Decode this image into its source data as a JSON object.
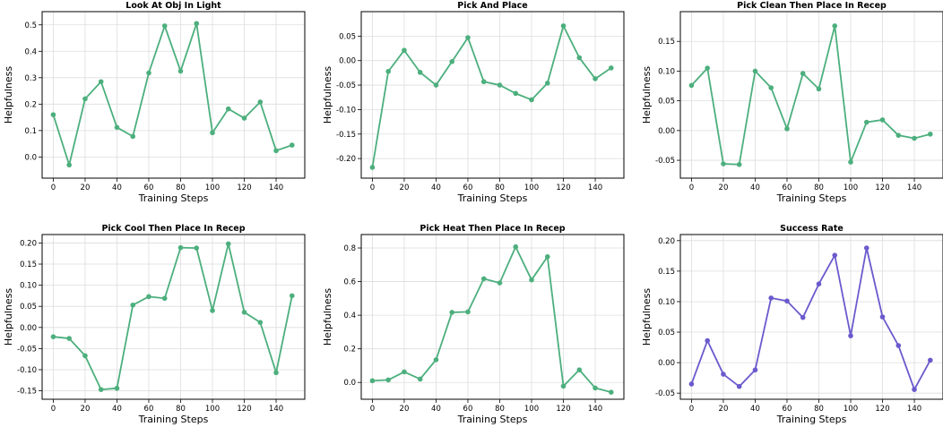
{
  "chart_data": [
    {
      "type": "line",
      "title": "Look At Obj In Light",
      "xlabel": "Training Steps",
      "ylabel": "Helpfulness",
      "x": [
        0,
        10,
        20,
        30,
        40,
        50,
        60,
        70,
        80,
        90,
        100,
        110,
        120,
        130,
        140,
        150
      ],
      "values": [
        0.16,
        -0.03,
        0.22,
        0.285,
        0.112,
        0.078,
        0.318,
        0.496,
        0.325,
        0.505,
        0.092,
        0.182,
        0.147,
        0.208,
        0.024,
        0.045
      ],
      "xlim": [
        -7,
        158
      ],
      "ylim": [
        -0.08,
        0.55
      ],
      "xticks": [
        0,
        20,
        40,
        60,
        80,
        100,
        120,
        140
      ],
      "yticks": [
        0.0,
        0.1,
        0.2,
        0.3,
        0.4,
        0.5
      ],
      "ytick_labels": [
        "0.0",
        "0.1",
        "0.2",
        "0.3",
        "0.4",
        "0.5"
      ],
      "color": "#4caf7d",
      "grid": true
    },
    {
      "type": "line",
      "title": "Pick And Place",
      "xlabel": "Training Steps",
      "ylabel": "Helpfulness",
      "x": [
        0,
        10,
        20,
        30,
        40,
        50,
        60,
        70,
        80,
        90,
        100,
        110,
        120,
        130,
        140,
        150
      ],
      "values": [
        -0.218,
        -0.022,
        0.021,
        -0.024,
        -0.05,
        -0.002,
        0.047,
        -0.043,
        -0.05,
        -0.067,
        -0.08,
        -0.046,
        0.071,
        0.006,
        -0.037,
        -0.015
      ],
      "xlim": [
        -7,
        158
      ],
      "ylim": [
        -0.24,
        0.1
      ],
      "xticks": [
        0,
        20,
        40,
        60,
        80,
        100,
        120,
        140
      ],
      "yticks": [
        -0.2,
        -0.15,
        -0.1,
        -0.05,
        0.0,
        0.05
      ],
      "ytick_labels": [
        "-0.20",
        "-0.15",
        "-0.10",
        "-0.05",
        "0.00",
        "0.05"
      ],
      "color": "#4caf7d",
      "grid": true
    },
    {
      "type": "line",
      "title": "Pick Clean Then Place In Recep",
      "xlabel": "Training Steps",
      "ylabel": "Helpfulness",
      "x": [
        0,
        10,
        20,
        30,
        40,
        50,
        60,
        70,
        80,
        90,
        100,
        110,
        120,
        130,
        140,
        150
      ],
      "values": [
        0.076,
        0.105,
        -0.056,
        -0.057,
        0.1,
        0.072,
        0.003,
        0.096,
        0.07,
        0.176,
        -0.053,
        0.014,
        0.018,
        -0.008,
        -0.013,
        -0.006
      ],
      "xlim": [
        -7,
        158
      ],
      "ylim": [
        -0.08,
        0.2
      ],
      "xticks": [
        0,
        20,
        40,
        60,
        80,
        100,
        120,
        140
      ],
      "yticks": [
        -0.05,
        0.0,
        0.05,
        0.1,
        0.15
      ],
      "ytick_labels": [
        "-0.05",
        "0.00",
        "0.05",
        "0.10",
        "0.15"
      ],
      "color": "#4caf7d",
      "grid": true
    },
    {
      "type": "line",
      "title": "Pick Cool Then Place In Recep",
      "xlabel": "Training Steps",
      "ylabel": "Helpfulness",
      "x": [
        0,
        10,
        20,
        30,
        40,
        50,
        60,
        70,
        80,
        90,
        100,
        110,
        120,
        130,
        140,
        150
      ],
      "values": [
        -0.022,
        -0.026,
        -0.067,
        -0.147,
        -0.144,
        0.053,
        0.073,
        0.069,
        0.189,
        0.188,
        0.04,
        0.198,
        0.036,
        0.012,
        -0.107,
        0.075
      ],
      "xlim": [
        -7,
        158
      ],
      "ylim": [
        -0.17,
        0.22
      ],
      "xticks": [
        0,
        20,
        40,
        60,
        80,
        100,
        120,
        140
      ],
      "yticks": [
        -0.15,
        -0.1,
        -0.05,
        0.0,
        0.05,
        0.1,
        0.15,
        0.2
      ],
      "ytick_labels": [
        "-0.15",
        "-0.10",
        "-0.05",
        "0.00",
        "0.05",
        "0.10",
        "0.15",
        "0.20"
      ],
      "color": "#4caf7d",
      "grid": true
    },
    {
      "type": "line",
      "title": "Pick Heat Then Place In Recep",
      "xlabel": "Training Steps",
      "ylabel": "Helpfulness",
      "x": [
        0,
        10,
        20,
        30,
        40,
        50,
        60,
        70,
        80,
        90,
        100,
        110,
        120,
        130,
        140,
        150
      ],
      "values": [
        0.01,
        0.015,
        0.063,
        0.02,
        0.135,
        0.417,
        0.42,
        0.617,
        0.592,
        0.807,
        0.61,
        0.748,
        -0.022,
        0.075,
        -0.033,
        -0.058
      ],
      "xlim": [
        -7,
        158
      ],
      "ylim": [
        -0.1,
        0.88
      ],
      "xticks": [
        0,
        20,
        40,
        60,
        80,
        100,
        120,
        140
      ],
      "yticks": [
        0.0,
        0.2,
        0.4,
        0.6,
        0.8
      ],
      "ytick_labels": [
        "0.0",
        "0.2",
        "0.4",
        "0.6",
        "0.8"
      ],
      "color": "#4caf7d",
      "grid": true
    },
    {
      "type": "line",
      "title": "Success Rate",
      "xlabel": "Training Steps",
      "ylabel": "Helpfulness",
      "x": [
        0,
        10,
        20,
        30,
        40,
        50,
        60,
        70,
        80,
        90,
        100,
        110,
        120,
        130,
        140,
        150
      ],
      "values": [
        -0.035,
        0.036,
        -0.019,
        -0.039,
        -0.012,
        0.106,
        0.101,
        0.074,
        0.129,
        0.176,
        0.044,
        0.188,
        0.075,
        0.028,
        -0.044,
        0.004
      ],
      "xlim": [
        -7,
        158
      ],
      "ylim": [
        -0.06,
        0.21
      ],
      "xticks": [
        0,
        20,
        40,
        60,
        80,
        100,
        120,
        140
      ],
      "yticks": [
        -0.05,
        0.0,
        0.05,
        0.1,
        0.15,
        0.2
      ],
      "ytick_labels": [
        "-0.05",
        "0.00",
        "0.05",
        "0.10",
        "0.15",
        "0.20"
      ],
      "color": "#6a5acd",
      "grid": true
    }
  ]
}
